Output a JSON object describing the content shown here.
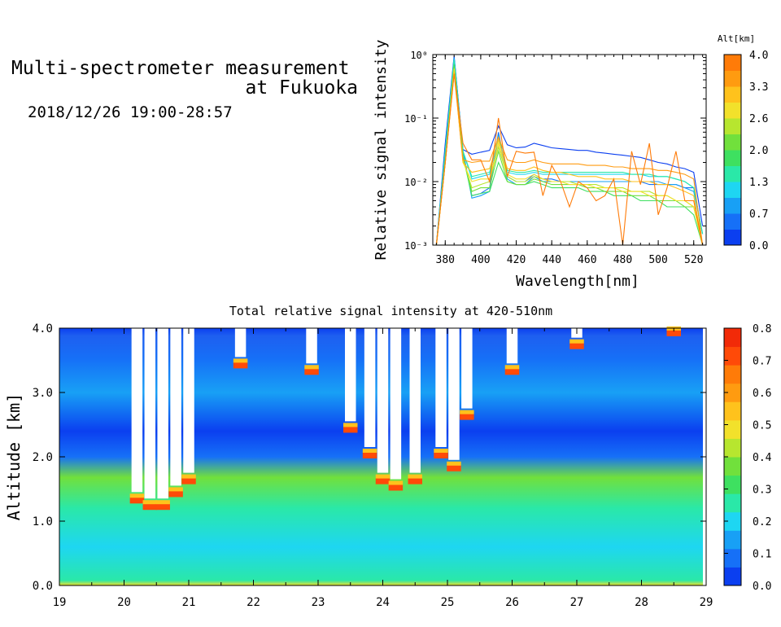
{
  "header": {
    "title_line1": "Multi-spectrometer measurement",
    "title_line2": "at Fukuoka",
    "subtitle": "2018/12/26 19:00-28:57"
  },
  "colors": {
    "scale": [
      "#1f3fe8",
      "#2c7ff3",
      "#12b9f0",
      "#18e8e0",
      "#2ed58a",
      "#57e84a",
      "#9be03a",
      "#d9e23a",
      "#ffd32a",
      "#ffa31f",
      "#ff7a12",
      "#ff4a10",
      "#f01e10"
    ]
  },
  "chart_data": [
    {
      "type": "line",
      "ylabel": "Relative signal intensity",
      "xlabel": "Wavelength[nm]",
      "yscale": "log",
      "xlim": [
        373,
        527
      ],
      "ylim": [
        0.001,
        1
      ],
      "xticks": [
        "380",
        "400",
        "420",
        "440",
        "460",
        "480",
        "500",
        "520"
      ],
      "yticks": [
        "10⁻³",
        "10⁻²",
        "10⁻¹",
        "10⁰"
      ],
      "colorbar": {
        "title": "Alt[km]",
        "ticks": [
          "0.0",
          "0.7",
          "1.3",
          "2.0",
          "2.6",
          "3.3",
          "4.0"
        ],
        "colors": [
          "#0b3ff0",
          "#1670f7",
          "#18a0f5",
          "#1ed6f2",
          "#2ae8a8",
          "#3ee060",
          "#71e03c",
          "#b7e62f",
          "#f2e12b",
          "#ffc21c",
          "#ff9b10",
          "#ff7b08"
        ]
      },
      "x": [
        375,
        380,
        385,
        390,
        395,
        400,
        405,
        410,
        415,
        420,
        425,
        430,
        435,
        440,
        445,
        450,
        455,
        460,
        465,
        470,
        475,
        480,
        485,
        490,
        495,
        500,
        505,
        510,
        515,
        520,
        525
      ],
      "series": [
        {
          "color": "#0b3ff0",
          "values": [
            0.001,
            0.04,
            0.95,
            0.032,
            0.027,
            0.029,
            0.031,
            0.075,
            0.038,
            0.034,
            0.035,
            0.04,
            0.037,
            0.034,
            0.033,
            0.032,
            0.031,
            0.031,
            0.029,
            0.028,
            0.027,
            0.026,
            0.025,
            0.024,
            0.022,
            0.02,
            0.019,
            0.017,
            0.016,
            0.014,
            0.002
          ]
        },
        {
          "color": "#1670f7",
          "values": [
            0.001,
            0.03,
            0.9,
            0.03,
            0.006,
            0.0065,
            0.008,
            0.06,
            0.012,
            0.01,
            0.01,
            0.013,
            0.011,
            0.011,
            0.01,
            0.01,
            0.01,
            0.01,
            0.01,
            0.01,
            0.01,
            0.01,
            0.01,
            0.01,
            0.009,
            0.009,
            0.009,
            0.009,
            0.008,
            0.008,
            0.0015
          ]
        },
        {
          "color": "#18a0f5",
          "values": [
            0.001,
            0.03,
            0.88,
            0.03,
            0.0055,
            0.006,
            0.007,
            0.055,
            0.011,
            0.009,
            0.009,
            0.012,
            0.01,
            0.01,
            0.01,
            0.01,
            0.01,
            0.01,
            0.01,
            0.01,
            0.01,
            0.01,
            0.01,
            0.01,
            0.01,
            0.01,
            0.009,
            0.009,
            0.008,
            0.007,
            0.0015
          ]
        },
        {
          "color": "#1ed6f2",
          "values": [
            0.001,
            0.03,
            0.85,
            0.03,
            0.011,
            0.012,
            0.013,
            0.05,
            0.014,
            0.013,
            0.013,
            0.014,
            0.013,
            0.013,
            0.013,
            0.013,
            0.013,
            0.013,
            0.013,
            0.013,
            0.013,
            0.013,
            0.013,
            0.013,
            0.012,
            0.012,
            0.012,
            0.011,
            0.01,
            0.008,
            0.0015
          ]
        },
        {
          "color": "#2ae8a8",
          "values": [
            0.001,
            0.03,
            0.82,
            0.03,
            0.012,
            0.013,
            0.014,
            0.05,
            0.015,
            0.014,
            0.014,
            0.015,
            0.014,
            0.014,
            0.014,
            0.014,
            0.014,
            0.014,
            0.014,
            0.014,
            0.014,
            0.014,
            0.013,
            0.013,
            0.013,
            0.012,
            0.012,
            0.011,
            0.01,
            0.008,
            0.0015
          ]
        },
        {
          "color": "#3ee060",
          "values": [
            0.001,
            0.02,
            0.7,
            0.025,
            0.006,
            0.0065,
            0.007,
            0.02,
            0.01,
            0.009,
            0.009,
            0.01,
            0.009,
            0.008,
            0.008,
            0.008,
            0.008,
            0.007,
            0.007,
            0.007,
            0.006,
            0.006,
            0.006,
            0.005,
            0.005,
            0.005,
            0.004,
            0.004,
            0.004,
            0.003,
            0.001
          ]
        },
        {
          "color": "#71e03c",
          "values": [
            0.001,
            0.02,
            0.65,
            0.025,
            0.007,
            0.008,
            0.008,
            0.03,
            0.01,
            0.009,
            0.009,
            0.011,
            0.01,
            0.009,
            0.009,
            0.009,
            0.009,
            0.008,
            0.008,
            0.007,
            0.007,
            0.007,
            0.006,
            0.006,
            0.006,
            0.005,
            0.005,
            0.005,
            0.004,
            0.004,
            0.001
          ]
        },
        {
          "color": "#b7e62f",
          "values": [
            0.001,
            0.02,
            0.6,
            0.022,
            0.008,
            0.009,
            0.01,
            0.035,
            0.012,
            0.01,
            0.01,
            0.012,
            0.011,
            0.01,
            0.01,
            0.01,
            0.009,
            0.009,
            0.009,
            0.008,
            0.008,
            0.008,
            0.007,
            0.007,
            0.007,
            0.006,
            0.006,
            0.005,
            0.005,
            0.004,
            0.001
          ]
        },
        {
          "color": "#f2e12b",
          "values": [
            0.001,
            0.02,
            0.6,
            0.02,
            0.01,
            0.011,
            0.011,
            0.04,
            0.013,
            0.011,
            0.011,
            0.013,
            0.011,
            0.01,
            0.01,
            0.009,
            0.009,
            0.009,
            0.008,
            0.008,
            0.008,
            0.007,
            0.007,
            0.007,
            0.006,
            0.006,
            0.006,
            0.005,
            0.005,
            0.004,
            0.001
          ]
        },
        {
          "color": "#ffc21c",
          "values": [
            0.001,
            0.02,
            0.55,
            0.02,
            0.014,
            0.015,
            0.016,
            0.045,
            0.016,
            0.015,
            0.015,
            0.017,
            0.015,
            0.014,
            0.014,
            0.013,
            0.012,
            0.012,
            0.012,
            0.011,
            0.011,
            0.011,
            0.01,
            0.01,
            0.01,
            0.009,
            0.009,
            0.008,
            0.007,
            0.006,
            0.001
          ]
        },
        {
          "color": "#ff9b10",
          "values": [
            0.001,
            0.02,
            0.5,
            0.022,
            0.02,
            0.021,
            0.021,
            0.05,
            0.022,
            0.02,
            0.02,
            0.022,
            0.02,
            0.019,
            0.019,
            0.019,
            0.019,
            0.018,
            0.018,
            0.018,
            0.017,
            0.017,
            0.016,
            0.016,
            0.016,
            0.015,
            0.015,
            0.014,
            0.013,
            0.011,
            0.001
          ]
        },
        {
          "color": "#ff7b08",
          "values": [
            0.001,
            0.02,
            0.5,
            0.04,
            0.022,
            0.022,
            0.01,
            0.1,
            0.012,
            0.03,
            0.028,
            0.029,
            0.006,
            0.018,
            0.01,
            0.004,
            0.01,
            0.008,
            0.005,
            0.006,
            0.011,
            0.001,
            0.03,
            0.009,
            0.04,
            0.003,
            0.008,
            0.03,
            0.005,
            0.005,
            0.001
          ]
        }
      ]
    },
    {
      "type": "heatmap",
      "title": "Total relative signal intensity at 420-510nm",
      "ylabel": "Altitude [km]",
      "xlabel": "",
      "xlim": [
        19,
        29
      ],
      "ylim": [
        0,
        4
      ],
      "xticks": [
        "19",
        "20",
        "21",
        "22",
        "23",
        "24",
        "25",
        "26",
        "27",
        "28",
        "29"
      ],
      "yticks": [
        "0.0",
        "1.0",
        "2.0",
        "3.0",
        "4.0"
      ],
      "data_x_end": 28.95,
      "colorbar": {
        "ticks": [
          "0.0",
          "0.1",
          "0.2",
          "0.3",
          "0.4",
          "0.5",
          "0.6",
          "0.7",
          "0.8"
        ],
        "range": [
          0,
          0.8
        ],
        "colors": [
          "#0b3ff0",
          "#1670f7",
          "#18a0f5",
          "#1ed6f2",
          "#2ae8a8",
          "#3ee060",
          "#71e03c",
          "#b7e62f",
          "#f2e12b",
          "#ffc21c",
          "#ff9b10",
          "#ff7b08",
          "#ff4a08",
          "#f22a08"
        ]
      },
      "cloud_base_km": [
        {
          "x": 20.2,
          "base": 1.3
        },
        {
          "x": 20.4,
          "base": 1.2
        },
        {
          "x": 20.6,
          "base": 1.2
        },
        {
          "x": 20.8,
          "base": 1.4
        },
        {
          "x": 21.0,
          "base": 1.6
        },
        {
          "x": 21.8,
          "base": 3.4
        },
        {
          "x": 22.9,
          "base": 3.3
        },
        {
          "x": 23.5,
          "base": 2.4
        },
        {
          "x": 23.8,
          "base": 2.0
        },
        {
          "x": 24.0,
          "base": 1.6
        },
        {
          "x": 24.2,
          "base": 1.5
        },
        {
          "x": 24.5,
          "base": 1.6
        },
        {
          "x": 24.9,
          "base": 2.0
        },
        {
          "x": 25.1,
          "base": 1.8
        },
        {
          "x": 25.3,
          "base": 2.6
        },
        {
          "x": 26.0,
          "base": 3.3
        },
        {
          "x": 27.0,
          "base": 3.7
        },
        {
          "x": 28.5,
          "base": 3.9
        }
      ]
    }
  ]
}
